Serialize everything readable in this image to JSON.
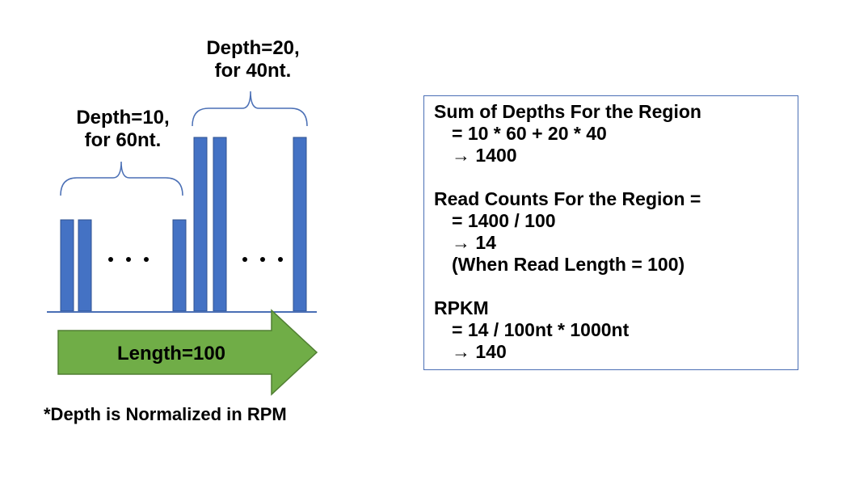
{
  "diagram": {
    "label_depth10": [
      "Depth=10,",
      "for 60nt."
    ],
    "label_depth20": [
      "Depth=20,",
      "for 40nt."
    ],
    "ellipsis": "• • •",
    "arrow_label": "Length=100",
    "bar_color": "#4472c4",
    "arrow_color": "#70ad47",
    "brace_color": "#4a6fb5"
  },
  "footnote": "*Depth is Normalized in RPM",
  "info": {
    "sum_title": "Sum of Depths For the Region",
    "sum_formula": "= 10 * 60 + 20 * 40",
    "sum_result": "→ 1400",
    "read_title": "Read Counts For the Region =",
    "read_formula": "= 1400 / 100",
    "read_result": "→ 14",
    "read_note": "(When Read Length = 100)",
    "rpkm_title": "RPKM",
    "rpkm_formula": "= 14 / 100nt * 1000nt",
    "rpkm_result": "→ 140"
  }
}
